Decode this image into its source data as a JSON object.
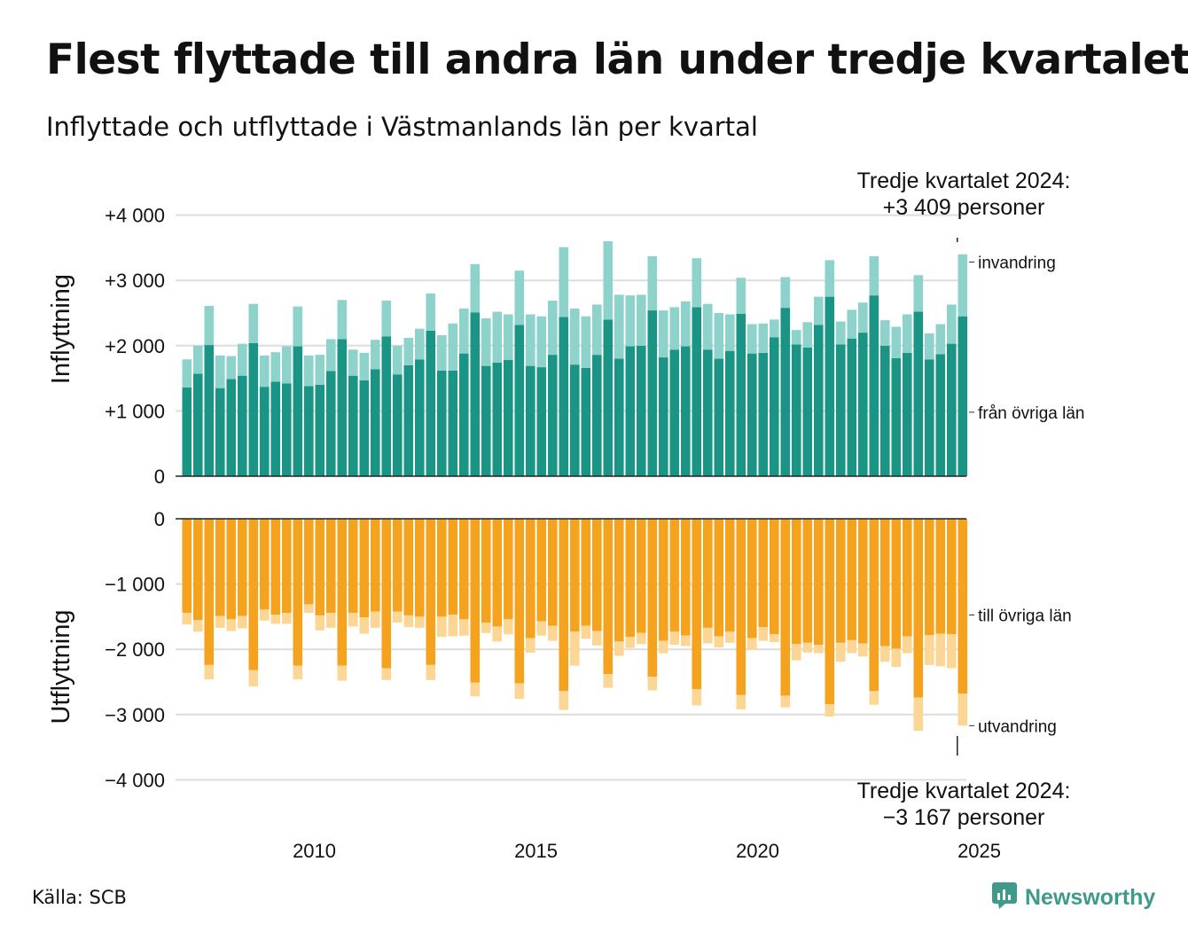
{
  "header": {
    "title": "Flest flyttade till andra län under tredje kvartalet",
    "subtitle": "Inflyttade och utflyttade i Västmanlands län per kvartal"
  },
  "footer": {
    "source": "Källa: SCB",
    "brand": "Newsworthy"
  },
  "icons": {
    "brand_logo": "newsworthy-logo-icon"
  },
  "colors": {
    "in_domestic": "#1a9585",
    "in_immigration": "#8ed3cb",
    "out_domestic": "#f5a21e",
    "out_emigration": "#fcd695",
    "grid": "#dddddd",
    "axis": "#222222",
    "brand": "#3f9a8c"
  },
  "annotations": {
    "top": [
      "Tredje kvartalet 2024:",
      "+3 409 personer"
    ],
    "bottom": [
      "Tredje kvartalet 2024:",
      "−3 167 personer"
    ]
  },
  "chart_data": {
    "type": "bar",
    "stacked": true,
    "x_unit": "quarter",
    "x_start": "2007 Q1",
    "x_ticks": [
      "2010",
      "2015",
      "2020",
      "2025"
    ],
    "grid": true,
    "panels": [
      {
        "ylabel": "Inflyttning",
        "ylim": [
          0,
          4000
        ],
        "y_ticks": [
          "0",
          "+1 000",
          "+2 000",
          "+3 000",
          "+4 000"
        ],
        "series": [
          {
            "name": "från övriga län",
            "values": [
              1360,
              1570,
              2010,
              1350,
              1490,
              1540,
              2040,
              1370,
              1450,
              1420,
              1990,
              1380,
              1400,
              1610,
              2100,
              1540,
              1470,
              1640,
              2140,
              1560,
              1700,
              1790,
              2230,
              1620,
              1620,
              1880,
              2510,
              1690,
              1740,
              1780,
              2320,
              1690,
              1670,
              1860,
              2440,
              1710,
              1660,
              1860,
              2400,
              1800,
              1990,
              2000,
              2540,
              1820,
              1940,
              1990,
              2590,
              1940,
              1800,
              1920,
              2490,
              1880,
              1890,
              2130,
              2580,
              2020,
              1970,
              2320,
              2750,
              2020,
              2110,
              2200,
              2770,
              2000,
              1810,
              1890,
              2520,
              1790,
              1870,
              2030,
              2450
            ]
          },
          {
            "name": "invandring",
            "values": [
              430,
              430,
              600,
              500,
              350,
              490,
              600,
              480,
              450,
              570,
              610,
              470,
              460,
              490,
              600,
              400,
              420,
              450,
              550,
              440,
              420,
              470,
              570,
              540,
              720,
              690,
              740,
              730,
              780,
              700,
              830,
              790,
              780,
              830,
              1070,
              860,
              790,
              770,
              1200,
              980,
              780,
              780,
              830,
              720,
              650,
              690,
              750,
              700,
              700,
              560,
              550,
              450,
              450,
              270,
              470,
              220,
              390,
              430,
              560,
              350,
              440,
              460,
              600,
              390,
              480,
              590,
              560,
              400,
              460,
              600,
              950
            ]
          }
        ]
      },
      {
        "ylabel": "Utflyttning",
        "ylim": [
          -4000,
          0
        ],
        "y_ticks": [
          "0",
          "−1 000",
          "−2 000",
          "−3 000",
          "−4 000"
        ],
        "series": [
          {
            "name": "till övriga län",
            "values": [
              -1440,
              -1550,
              -2240,
              -1490,
              -1540,
              -1490,
              -2320,
              -1390,
              -1470,
              -1440,
              -2250,
              -1310,
              -1480,
              -1440,
              -2250,
              -1440,
              -1510,
              -1420,
              -2290,
              -1420,
              -1480,
              -1500,
              -2240,
              -1500,
              -1470,
              -1540,
              -2510,
              -1590,
              -1650,
              -1540,
              -2520,
              -1830,
              -1570,
              -1640,
              -2640,
              -1730,
              -1640,
              -1720,
              -2380,
              -1880,
              -1810,
              -1750,
              -2420,
              -1870,
              -1730,
              -1790,
              -2610,
              -1670,
              -1800,
              -1730,
              -2700,
              -1830,
              -1660,
              -1770,
              -2710,
              -1920,
              -1900,
              -1930,
              -2840,
              -1900,
              -1860,
              -1910,
              -2640,
              -1950,
              -1990,
              -1800,
              -2740,
              -1780,
              -1760,
              -1770,
              -2680
            ]
          },
          {
            "name": "utvandring",
            "values": [
              -180,
              -180,
              -220,
              -180,
              -180,
              -190,
              -250,
              -170,
              -140,
              -170,
              -210,
              -130,
              -230,
              -230,
              -230,
              -210,
              -250,
              -250,
              -180,
              -170,
              -180,
              -170,
              -230,
              -310,
              -330,
              -250,
              -210,
              -160,
              -230,
              -230,
              -240,
              -220,
              -220,
              -230,
              -290,
              -520,
              -200,
              -220,
              -210,
              -220,
              -170,
              -170,
              -210,
              -190,
              -200,
              -160,
              -250,
              -240,
              -170,
              -170,
              -220,
              -180,
              -210,
              -120,
              -180,
              -250,
              -150,
              -130,
              -190,
              -290,
              -200,
              -200,
              -210,
              -240,
              -280,
              -260,
              -510,
              -460,
              -500,
              -520,
              -490
            ]
          }
        ]
      }
    ]
  }
}
